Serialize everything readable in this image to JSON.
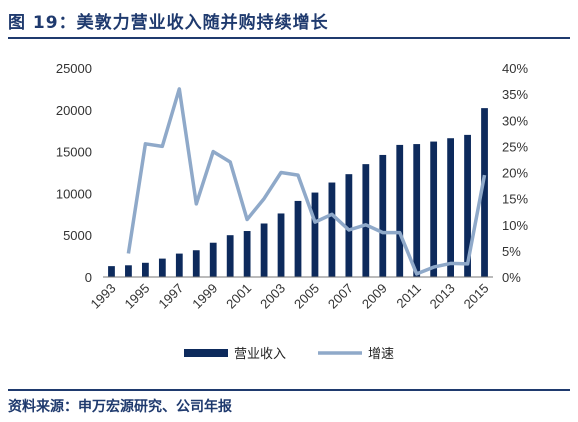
{
  "figure": {
    "title": "图 19：美敦力营业收入随并购持续增长",
    "source": "资料来源：申万宏源研究、公司年报"
  },
  "colors": {
    "bar": "#0d2a5c",
    "line": "#8fa9c9",
    "rule": "#1f3a6e"
  },
  "chart_data": {
    "type": "bar",
    "categories": [
      "1993",
      "1994",
      "1995",
      "1996",
      "1997",
      "1998",
      "1999",
      "2000",
      "2001",
      "2002",
      "2003",
      "2004",
      "2005",
      "2006",
      "2007",
      "2008",
      "2009",
      "2010",
      "2011",
      "2012",
      "2013",
      "2014",
      "2015"
    ],
    "x_tick_labels": [
      "1993",
      "1995",
      "1997",
      "1999",
      "2001",
      "2003",
      "2005",
      "2007",
      "2009",
      "2011",
      "2013",
      "2015"
    ],
    "series": [
      {
        "name": "营业收入",
        "type": "bar",
        "axis": "left",
        "values": [
          1300,
          1400,
          1700,
          2200,
          2800,
          3200,
          4100,
          5000,
          5500,
          6400,
          7600,
          9100,
          10100,
          11300,
          12300,
          13500,
          14600,
          15800,
          15900,
          16200,
          16600,
          17000,
          20200
        ]
      },
      {
        "name": "增速",
        "type": "line",
        "axis": "right",
        "values": [
          null,
          4.5,
          25.5,
          25,
          36,
          14,
          24,
          22,
          11,
          15,
          20,
          19.5,
          10.5,
          12,
          9,
          10,
          8.5,
          8.5,
          0.6,
          1.9,
          2.6,
          2.5,
          19.5
        ]
      }
    ],
    "y_left": {
      "min": 0,
      "max": 25000,
      "ticks": [
        0,
        5000,
        10000,
        15000,
        20000,
        25000
      ],
      "tick_labels": [
        "0",
        "5000",
        "10000",
        "15000",
        "20000",
        "25000"
      ]
    },
    "y_right": {
      "min": 0,
      "max": 40,
      "ticks": [
        0,
        5,
        10,
        15,
        20,
        25,
        30,
        35,
        40
      ],
      "tick_labels": [
        "0%",
        "5%",
        "10%",
        "15%",
        "20%",
        "25%",
        "30%",
        "35%",
        "40%"
      ]
    },
    "legend": {
      "position": "bottom",
      "items": [
        "营业收入",
        "增速"
      ]
    },
    "grid": false
  }
}
